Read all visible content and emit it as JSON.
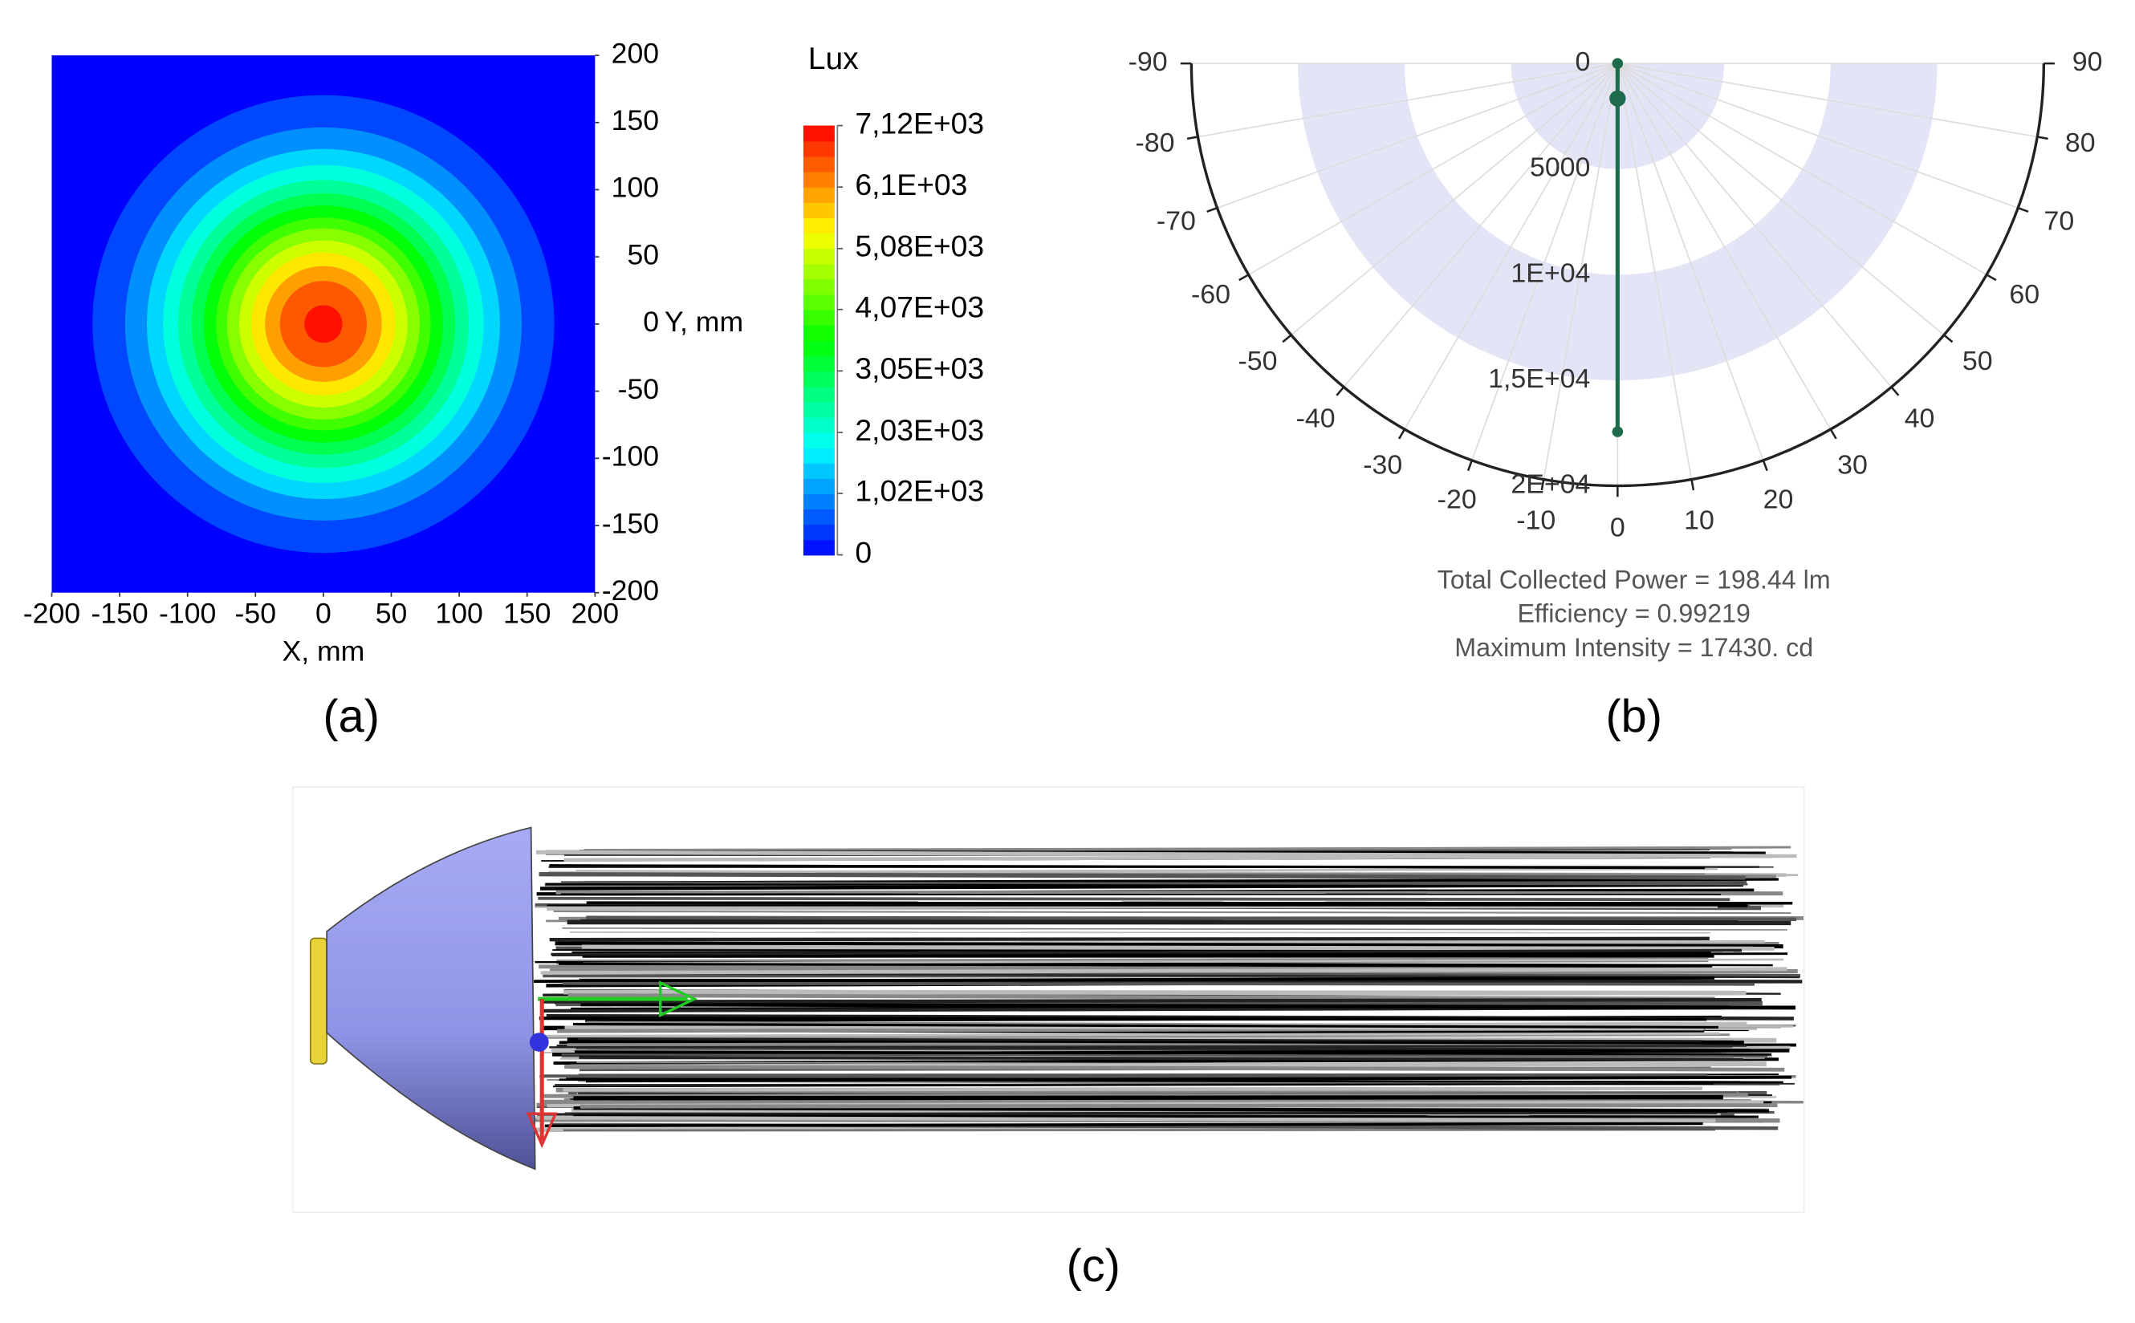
{
  "panel_labels": [
    "(a)",
    "(b)",
    "(c)"
  ],
  "chart_data": [
    {
      "type": "contour",
      "xlabel": "X, mm",
      "ylabel": "Y, mm",
      "xlim": [
        -200,
        200
      ],
      "ylim": [
        -200,
        200
      ],
      "xticks": [
        -200,
        -150,
        -100,
        -50,
        0,
        50,
        100,
        150,
        200
      ],
      "yticks": [
        -200,
        -150,
        -100,
        -50,
        0,
        50,
        100,
        150,
        200
      ],
      "colorbar_title": "Lux",
      "clim": [
        0,
        7120
      ],
      "colorbar_ticks": [
        {
          "value": 7120,
          "label": "7,12E+03"
        },
        {
          "value": 6100,
          "label": "6,1E+03"
        },
        {
          "value": 5080,
          "label": "5,08E+03"
        },
        {
          "value": 4070,
          "label": "4,07E+03"
        },
        {
          "value": 3050,
          "label": "3,05E+03"
        },
        {
          "value": 2030,
          "label": "2,03E+03"
        },
        {
          "value": 1020,
          "label": "1,02E+03"
        },
        0
      ],
      "contour_levels": [
        500,
        1000,
        1500,
        2000,
        2500,
        3000,
        3500,
        4000,
        4500,
        5000,
        5500,
        6000,
        6500,
        7000
      ],
      "contour_radii": [
        170,
        146,
        130,
        118,
        107,
        97,
        88,
        79,
        71,
        62,
        53,
        43,
        32,
        14
      ]
    },
    {
      "type": "polar",
      "thetaticks": [
        -90,
        -80,
        -70,
        -60,
        -50,
        -40,
        -30,
        -20,
        -10,
        0,
        10,
        20,
        30,
        40,
        50,
        60,
        70,
        80,
        90
      ],
      "rlim": [
        0,
        20000
      ],
      "rticks": [
        0,
        5000,
        {
          "value": 10000,
          "label": "1E+04"
        },
        {
          "value": 15000,
          "label": "1,5E+04"
        },
        {
          "value": 20000,
          "label": "2E+04"
        }
      ],
      "series": [
        {
          "color": "#1d6b4b",
          "theta": [
            0,
            0,
            0
          ],
          "values": [
            0,
            1660,
            17430
          ]
        }
      ],
      "annotations": [
        "Total Collected Power =  198.44  lm",
        "Efficiency = 0.99219",
        "Maximum Intensity = 17430.  cd"
      ]
    }
  ]
}
